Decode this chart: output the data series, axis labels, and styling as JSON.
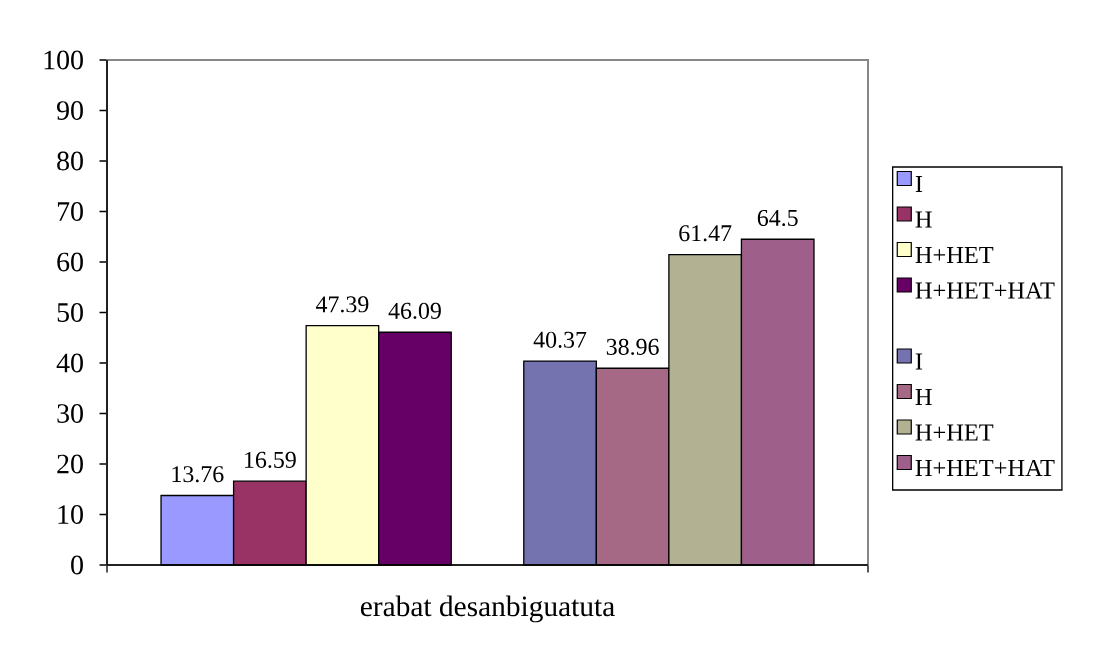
{
  "chart_data": {
    "type": "bar",
    "categories": [
      "erabat desanbiguatuta"
    ],
    "series": [
      {
        "name": "I",
        "color": "#9999ff",
        "values": [
          13.76
        ]
      },
      {
        "name": "H",
        "color": "#993366",
        "values": [
          16.59
        ]
      },
      {
        "name": "H+HET",
        "color": "#ffffcc",
        "values": [
          47.39
        ]
      },
      {
        "name": "H+HET+HAT",
        "color": "#660066",
        "values": [
          46.09
        ]
      },
      {
        "values": [
          null
        ]
      },
      {
        "name": "I",
        "color": "#7473b0",
        "values": [
          40.37
        ]
      },
      {
        "name": "H",
        "color": "#a66985",
        "values": [
          38.96
        ]
      },
      {
        "name": "H+HET",
        "color": "#b2b292",
        "values": [
          61.47
        ]
      },
      {
        "name": "H+HET+HAT",
        "color": "#9e5f8a",
        "values": [
          64.5
        ]
      }
    ],
    "ylim": [
      0,
      100
    ],
    "yticks": [
      0,
      10,
      20,
      30,
      40,
      50,
      60,
      70,
      80,
      90,
      100
    ],
    "data_labels": true,
    "legend": "right"
  }
}
